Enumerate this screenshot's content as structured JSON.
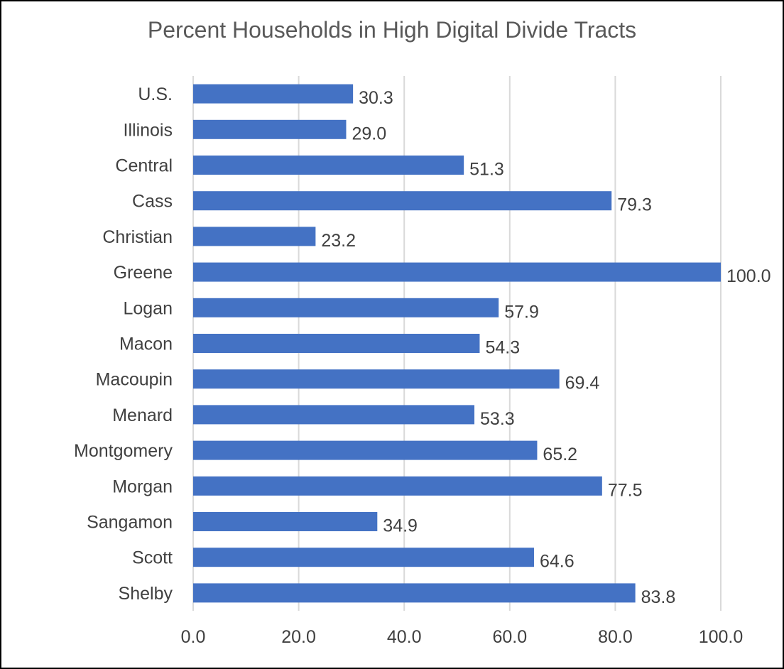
{
  "chart_data": {
    "type": "bar",
    "orientation": "horizontal",
    "title": "Percent Households in High Digital Divide Tracts",
    "xlabel": "",
    "ylabel": "",
    "categories": [
      "U.S.",
      "Illinois",
      "Central",
      "Cass",
      "Christian",
      "Greene",
      "Logan",
      "Macon",
      "Macoupin",
      "Menard",
      "Montgomery",
      "Morgan",
      "Sangamon",
      "Scott",
      "Shelby"
    ],
    "values": [
      30.3,
      29.0,
      51.3,
      79.3,
      23.2,
      100.0,
      57.9,
      54.3,
      69.4,
      53.3,
      65.2,
      77.5,
      34.9,
      64.6,
      83.8
    ],
    "value_labels": [
      "30.3",
      "29.0",
      "51.3",
      "79.3",
      "23.2",
      "100.0",
      "57.9",
      "54.3",
      "69.4",
      "53.3",
      "65.2",
      "77.5",
      "34.9",
      "64.6",
      "83.8"
    ],
    "xlim": [
      0,
      100
    ],
    "x_ticks": [
      0,
      20,
      40,
      60,
      80,
      100
    ],
    "x_tick_labels": [
      "0.0",
      "20.0",
      "40.0",
      "60.0",
      "80.0",
      "100.0"
    ],
    "grid": "vertical",
    "legend": "none",
    "bar_color": "#4472C4",
    "grid_color": "#D9D9D9",
    "text_color": "#404040",
    "title_color": "#595959"
  }
}
